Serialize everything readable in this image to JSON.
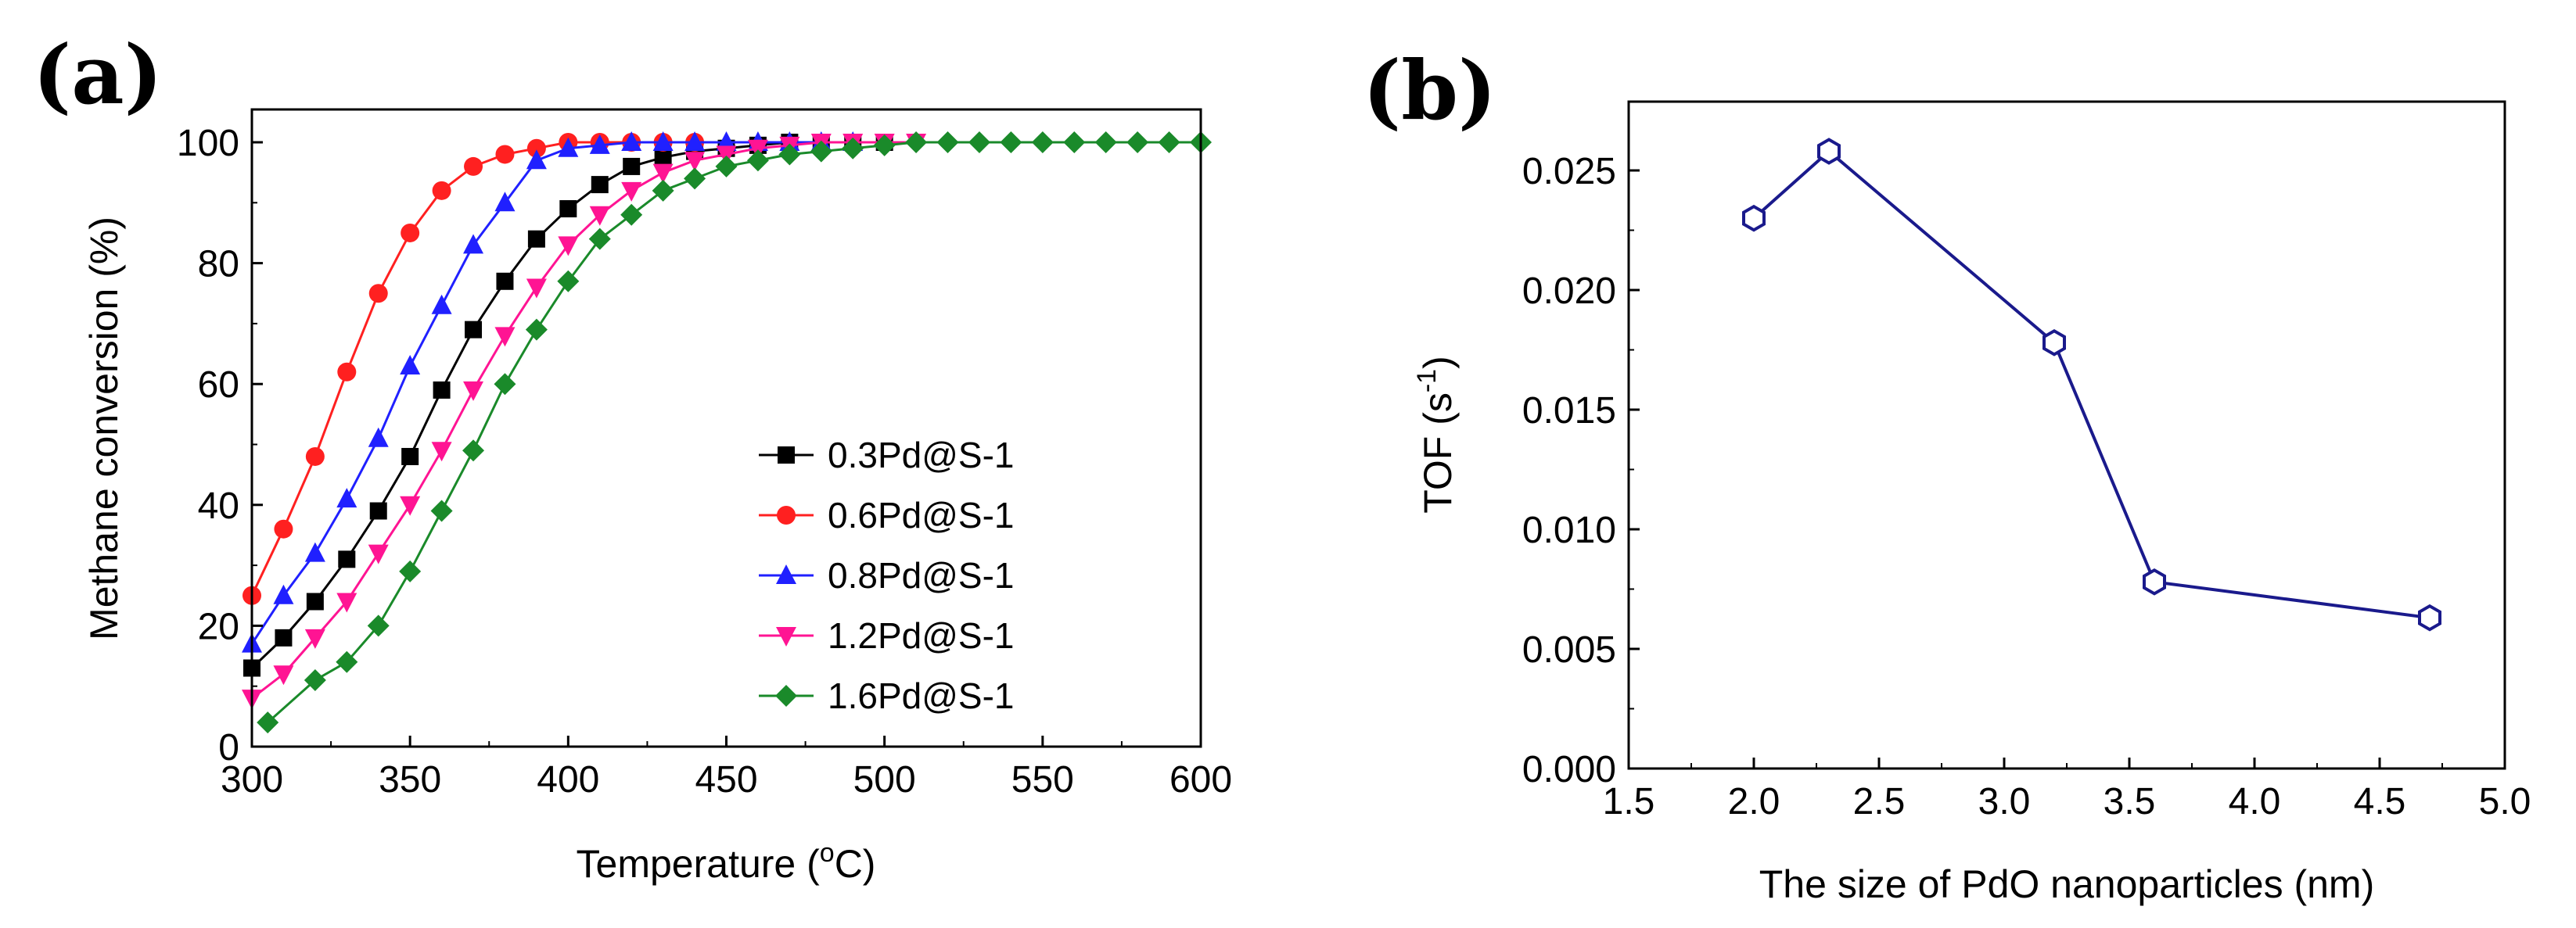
{
  "chart_data": [
    {
      "panel": "(a)",
      "type": "line",
      "title": "",
      "xlabel": "Temperature (",
      "xlabel_sup": "o",
      "xlabel_end": "C)",
      "ylabel": "Methane conversion (%)",
      "xlim": [
        300,
        600
      ],
      "ylim": [
        0,
        105
      ],
      "xticks": [
        300,
        350,
        400,
        450,
        500,
        550,
        600
      ],
      "yticks": [
        0,
        20,
        40,
        60,
        80,
        100
      ],
      "legend_position": "center-right",
      "series": [
        {
          "name": "0.3Pd@S-1",
          "color": "#000000",
          "marker": "square",
          "x": [
            300,
            310,
            320,
            330,
            340,
            350,
            360,
            370,
            380,
            390,
            400,
            410,
            420,
            430,
            440,
            450,
            460,
            470,
            480,
            490,
            500
          ],
          "y": [
            13,
            18,
            24,
            31,
            39,
            48,
            59,
            69,
            77,
            84,
            89,
            93,
            96,
            97.5,
            98.5,
            99,
            99.5,
            100,
            100,
            100,
            100
          ]
        },
        {
          "name": "0.6Pd@S-1",
          "color": "#ff2020",
          "marker": "circle",
          "x": [
            300,
            310,
            320,
            330,
            340,
            350,
            360,
            370,
            380,
            390,
            400,
            410,
            420,
            430,
            440
          ],
          "y": [
            25,
            36,
            48,
            62,
            75,
            85,
            92,
            96,
            98,
            99,
            100,
            100,
            100,
            100,
            100
          ]
        },
        {
          "name": "0.8Pd@S-1",
          "color": "#2020ff",
          "marker": "triangle-up",
          "x": [
            300,
            310,
            320,
            330,
            340,
            350,
            360,
            370,
            380,
            390,
            400,
            410,
            420,
            430,
            440,
            450,
            460,
            470,
            480,
            490
          ],
          "y": [
            17,
            25,
            32,
            41,
            51,
            63,
            73,
            83,
            90,
            97,
            99,
            99.5,
            100,
            100,
            100,
            100,
            100,
            100,
            100,
            100
          ]
        },
        {
          "name": "1.2Pd@S-1",
          "color": "#ff1493",
          "marker": "triangle-down",
          "x": [
            300,
            310,
            320,
            330,
            340,
            350,
            360,
            370,
            380,
            390,
            400,
            410,
            420,
            430,
            440,
            450,
            460,
            470,
            480,
            490,
            500,
            510
          ],
          "y": [
            8,
            12,
            18,
            24,
            32,
            40,
            49,
            59,
            68,
            76,
            83,
            88,
            92,
            95,
            97,
            98,
            99,
            99.5,
            100,
            100,
            100,
            100
          ]
        },
        {
          "name": "1.6Pd@S-1",
          "color": "#1a8a2a",
          "marker": "diamond",
          "x": [
            305,
            320,
            330,
            340,
            350,
            360,
            370,
            380,
            390,
            400,
            410,
            420,
            430,
            440,
            450,
            460,
            470,
            480,
            490,
            500,
            510,
            520,
            530,
            540,
            550,
            560,
            570,
            580,
            590,
            600
          ],
          "y": [
            4,
            11,
            14,
            20,
            29,
            39,
            49,
            60,
            69,
            77,
            84,
            88,
            92,
            94,
            96,
            97,
            98,
            98.5,
            99,
            99.5,
            100,
            100,
            100,
            100,
            100,
            100,
            100,
            100,
            100,
            100
          ]
        }
      ]
    },
    {
      "panel": "(b)",
      "type": "line",
      "title": "",
      "xlabel": "The size of PdO nanoparticles (nm)",
      "ylabel": "TOF (s",
      "ylabel_sup": "-1",
      "ylabel_end": ")",
      "xlim": [
        1.5,
        5.0
      ],
      "ylim": [
        0.0,
        0.0275
      ],
      "xticks": [
        "1.5",
        "2.0",
        "2.5",
        "3.0",
        "3.5",
        "4.0",
        "4.5",
        "5.0"
      ],
      "yticks": [
        "0.000",
        "0.005",
        "0.010",
        "0.015",
        "0.020",
        "0.025"
      ],
      "series": [
        {
          "name": "TOF",
          "color": "#1a1a8c",
          "marker": "hexagon-open",
          "x": [
            2.0,
            2.3,
            3.2,
            3.6,
            4.7
          ],
          "y": [
            0.023,
            0.0258,
            0.0178,
            0.0078,
            0.0063
          ]
        }
      ]
    }
  ]
}
